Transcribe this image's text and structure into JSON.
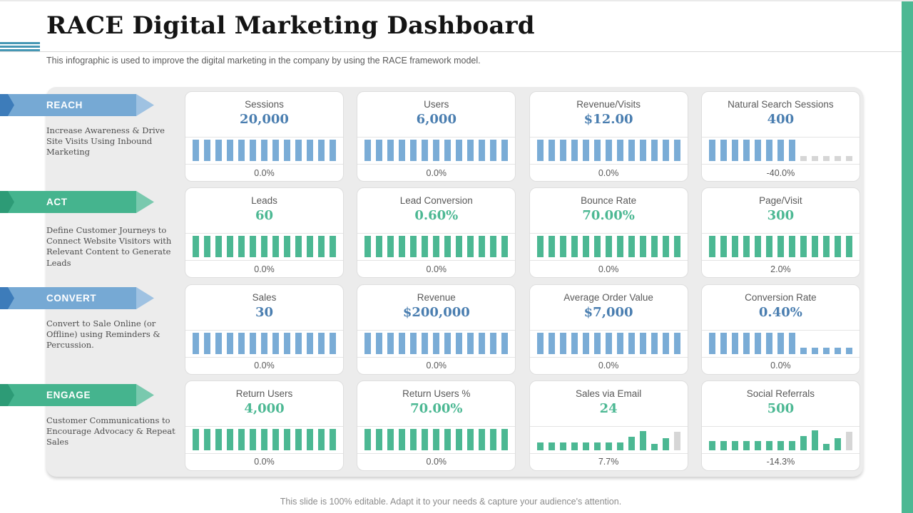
{
  "page": {
    "title": "RACE Digital Marketing Dashboard",
    "subtitle": "This infographic is used to improve the digital marketing in the company by using the RACE framework model.",
    "footer": "This slide is 100% editable. Adapt it to your needs & capture your audience's attention."
  },
  "colors": {
    "bar_blue": "#7aacd6",
    "bar_green": "#4cb893",
    "bar_gray": "#d6d6d6",
    "value_blue": "#4a7eb0",
    "value_green": "#4cb893",
    "arrow_blue": "#76a9d4",
    "arrow_blue_dark": "#3d7cba",
    "arrow_blue_tip": "#9fc2e2",
    "arrow_green": "#45b48e",
    "arrow_green_dark": "#2d9b76",
    "arrow_green_tip": "#79c9ae",
    "panel_gray": "#ececec",
    "edge_green": "#4cb893",
    "stripe_teal": "#4697b4"
  },
  "sections": [
    {
      "label": "REACH",
      "accent": "blue",
      "description": "Increase Awareness & Drive Site Visits Using Inbound Marketing"
    },
    {
      "label": "ACT",
      "accent": "green",
      "description": "Define Customer Journeys to Connect Website Visitors with Relevant Content to Generate Leads"
    },
    {
      "label": "CONVERT",
      "accent": "blue",
      "description": "Convert to Sale Online (or Offline) using Reminders & Percussion."
    },
    {
      "label": "ENGAGE",
      "accent": "green",
      "description": "Customer Communications to Encourage Advocacy & Repeat Sales"
    }
  ],
  "chart_data": [
    {
      "type": "bar",
      "section": "REACH",
      "title": "Sessions",
      "value": "20,000",
      "change": "0.0%",
      "bar_heights": [
        1,
        1,
        1,
        1,
        1,
        1,
        1,
        1,
        1,
        1,
        1,
        1,
        1
      ],
      "bar_colors": [
        "blue",
        "blue",
        "blue",
        "blue",
        "blue",
        "blue",
        "blue",
        "blue",
        "blue",
        "blue",
        "blue",
        "blue",
        "blue"
      ]
    },
    {
      "type": "bar",
      "section": "REACH",
      "title": "Users",
      "value": "6,000",
      "change": "0.0%",
      "bar_heights": [
        1,
        1,
        1,
        1,
        1,
        1,
        1,
        1,
        1,
        1,
        1,
        1,
        1
      ],
      "bar_colors": [
        "blue",
        "blue",
        "blue",
        "blue",
        "blue",
        "blue",
        "blue",
        "blue",
        "blue",
        "blue",
        "blue",
        "blue",
        "blue"
      ]
    },
    {
      "type": "bar",
      "section": "REACH",
      "title": "Revenue/Visits",
      "value": "$12.00",
      "change": "0.0%",
      "bar_heights": [
        1,
        1,
        1,
        1,
        1,
        1,
        1,
        1,
        1,
        1,
        1,
        1,
        1
      ],
      "bar_colors": [
        "blue",
        "blue",
        "blue",
        "blue",
        "blue",
        "blue",
        "blue",
        "blue",
        "blue",
        "blue",
        "blue",
        "blue",
        "blue"
      ]
    },
    {
      "type": "bar",
      "section": "REACH",
      "title": "Natural Search Sessions",
      "value": "400",
      "change": "-40.0%",
      "bar_heights": [
        1,
        1,
        1,
        1,
        1,
        1,
        1,
        1,
        0.22,
        0.22,
        0.22,
        0.22,
        0.22
      ],
      "bar_colors": [
        "blue",
        "blue",
        "blue",
        "blue",
        "blue",
        "blue",
        "blue",
        "blue",
        "gray",
        "gray",
        "gray",
        "gray",
        "gray"
      ]
    },
    {
      "type": "bar",
      "section": "ACT",
      "title": "Leads",
      "value": "60",
      "change": "0.0%",
      "bar_heights": [
        1,
        1,
        1,
        1,
        1,
        1,
        1,
        1,
        1,
        1,
        1,
        1,
        1
      ],
      "bar_colors": [
        "green",
        "green",
        "green",
        "green",
        "green",
        "green",
        "green",
        "green",
        "green",
        "green",
        "green",
        "green",
        "green"
      ]
    },
    {
      "type": "bar",
      "section": "ACT",
      "title": "Lead Conversion",
      "value": "0.60%",
      "change": "0.0%",
      "bar_heights": [
        1,
        1,
        1,
        1,
        1,
        1,
        1,
        1,
        1,
        1,
        1,
        1,
        1
      ],
      "bar_colors": [
        "green",
        "green",
        "green",
        "green",
        "green",
        "green",
        "green",
        "green",
        "green",
        "green",
        "green",
        "green",
        "green"
      ]
    },
    {
      "type": "bar",
      "section": "ACT",
      "title": "Bounce Rate",
      "value": "70.00%",
      "change": "0.0%",
      "bar_heights": [
        1,
        1,
        1,
        1,
        1,
        1,
        1,
        1,
        1,
        1,
        1,
        1,
        1
      ],
      "bar_colors": [
        "green",
        "green",
        "green",
        "green",
        "green",
        "green",
        "green",
        "green",
        "green",
        "green",
        "green",
        "green",
        "green"
      ]
    },
    {
      "type": "bar",
      "section": "ACT",
      "title": "Page/Visit",
      "value": "300",
      "change": "2.0%",
      "bar_heights": [
        1,
        1,
        1,
        1,
        1,
        1,
        1,
        1,
        1,
        1,
        1,
        1,
        1
      ],
      "bar_colors": [
        "green",
        "green",
        "green",
        "green",
        "green",
        "green",
        "green",
        "green",
        "green",
        "green",
        "green",
        "green",
        "green"
      ]
    },
    {
      "type": "bar",
      "section": "CONVERT",
      "title": "Sales",
      "value": "30",
      "change": "0.0%",
      "bar_heights": [
        1,
        1,
        1,
        1,
        1,
        1,
        1,
        1,
        1,
        1,
        1,
        1,
        1
      ],
      "bar_colors": [
        "blue",
        "blue",
        "blue",
        "blue",
        "blue",
        "blue",
        "blue",
        "blue",
        "blue",
        "blue",
        "blue",
        "blue",
        "blue"
      ]
    },
    {
      "type": "bar",
      "section": "CONVERT",
      "title": "Revenue",
      "value": "$200,000",
      "change": "0.0%",
      "bar_heights": [
        1,
        1,
        1,
        1,
        1,
        1,
        1,
        1,
        1,
        1,
        1,
        1,
        1
      ],
      "bar_colors": [
        "blue",
        "blue",
        "blue",
        "blue",
        "blue",
        "blue",
        "blue",
        "blue",
        "blue",
        "blue",
        "blue",
        "blue",
        "blue"
      ]
    },
    {
      "type": "bar",
      "section": "CONVERT",
      "title": "Average Order Value",
      "value": "$7,000",
      "change": "0.0%",
      "bar_heights": [
        1,
        1,
        1,
        1,
        1,
        1,
        1,
        1,
        1,
        1,
        1,
        1,
        1
      ],
      "bar_colors": [
        "blue",
        "blue",
        "blue",
        "blue",
        "blue",
        "blue",
        "blue",
        "blue",
        "blue",
        "blue",
        "blue",
        "blue",
        "blue"
      ]
    },
    {
      "type": "bar",
      "section": "CONVERT",
      "title": "Conversion Rate",
      "value": "0.40%",
      "change": "0.0%",
      "bar_heights": [
        1,
        1,
        1,
        1,
        1,
        1,
        1,
        1,
        0.3,
        0.3,
        0.3,
        0.3,
        0.3
      ],
      "bar_colors": [
        "blue",
        "blue",
        "blue",
        "blue",
        "blue",
        "blue",
        "blue",
        "blue",
        "blue",
        "blue",
        "blue",
        "blue",
        "blue"
      ]
    },
    {
      "type": "bar",
      "section": "ENGAGE",
      "title": "Return Users",
      "value": "4,000",
      "change": "0.0%",
      "bar_heights": [
        1,
        1,
        1,
        1,
        1,
        1,
        1,
        1,
        1,
        1,
        1,
        1,
        1
      ],
      "bar_colors": [
        "green",
        "green",
        "green",
        "green",
        "green",
        "green",
        "green",
        "green",
        "green",
        "green",
        "green",
        "green",
        "green"
      ]
    },
    {
      "type": "bar",
      "section": "ENGAGE",
      "title": "Return Users %",
      "value": "70.00%",
      "change": "0.0%",
      "bar_heights": [
        1,
        1,
        1,
        1,
        1,
        1,
        1,
        1,
        1,
        1,
        1,
        1,
        1
      ],
      "bar_colors": [
        "green",
        "green",
        "green",
        "green",
        "green",
        "green",
        "green",
        "green",
        "green",
        "green",
        "green",
        "green",
        "green"
      ]
    },
    {
      "type": "bar",
      "section": "ENGAGE",
      "title": "Sales via Email",
      "value": "24",
      "change": "7.7%",
      "bar_heights": [
        0.38,
        0.38,
        0.38,
        0.38,
        0.38,
        0.38,
        0.38,
        0.38,
        0.62,
        0.9,
        0.3,
        0.55,
        0.85
      ],
      "bar_colors": [
        "green",
        "green",
        "green",
        "green",
        "green",
        "green",
        "green",
        "green",
        "green",
        "green",
        "green",
        "green",
        "gray"
      ]
    },
    {
      "type": "bar",
      "section": "ENGAGE",
      "title": "Social Referrals",
      "value": "500",
      "change": "-14.3%",
      "bar_heights": [
        0.42,
        0.42,
        0.42,
        0.42,
        0.42,
        0.42,
        0.42,
        0.42,
        0.65,
        0.92,
        0.3,
        0.58,
        0.85
      ],
      "bar_colors": [
        "green",
        "green",
        "green",
        "green",
        "green",
        "green",
        "green",
        "green",
        "green",
        "green",
        "green",
        "green",
        "gray"
      ]
    }
  ]
}
